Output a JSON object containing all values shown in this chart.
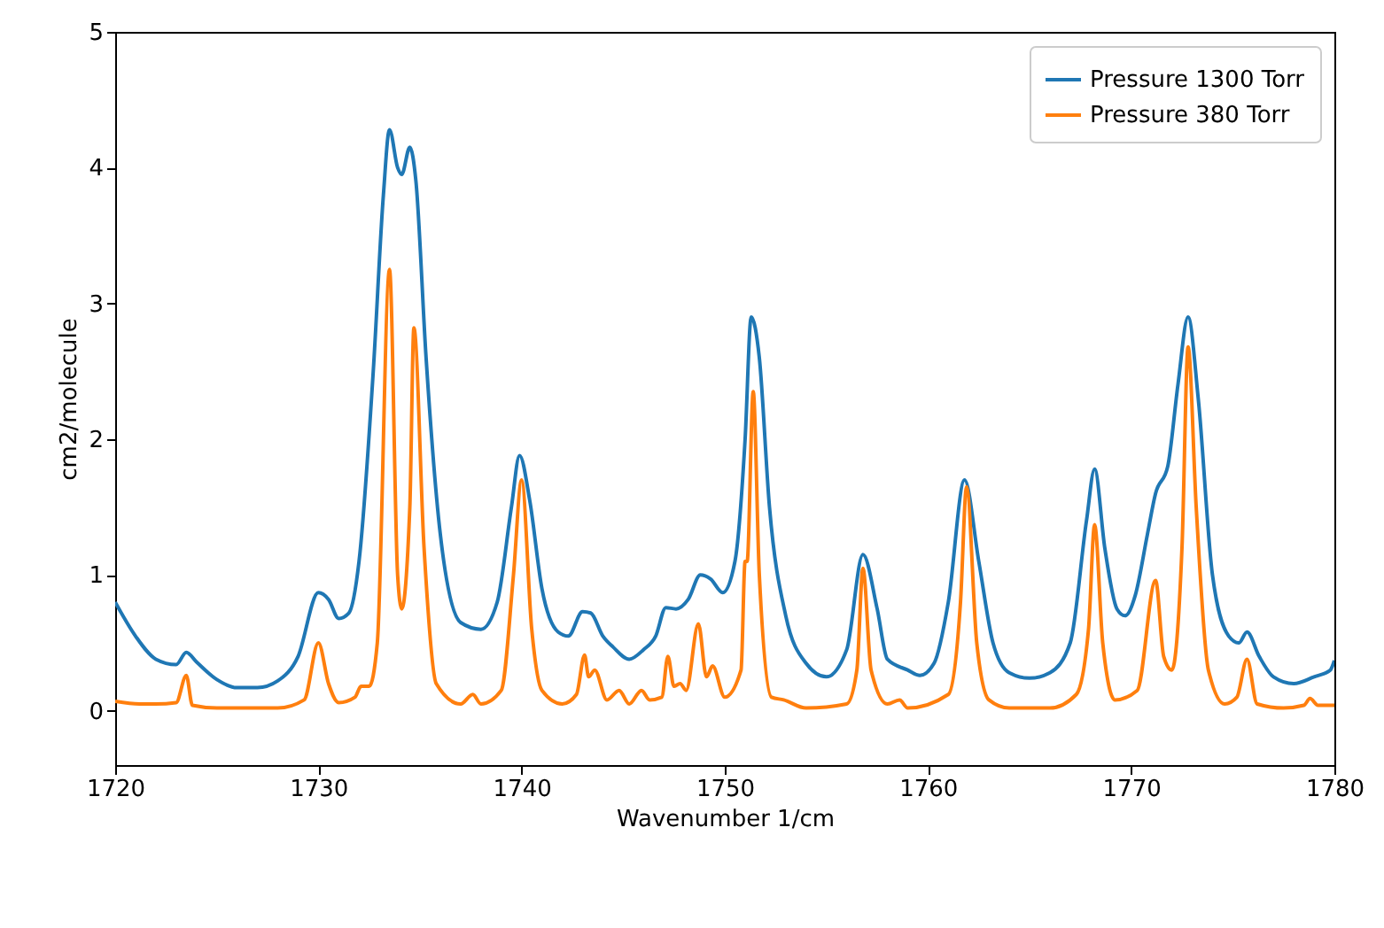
{
  "chart_data": {
    "type": "line",
    "xlabel": "Wavenumber 1/cm",
    "ylabel": "cm2/molecule",
    "xlim": [
      1720,
      1780
    ],
    "xticks": [
      1720,
      1730,
      1740,
      1750,
      1760,
      1770,
      1780
    ],
    "ylim": [
      -0.4,
      5
    ],
    "yticks": [
      0,
      1,
      2,
      3,
      4,
      5
    ],
    "grid": false,
    "legend": "top right",
    "marker": "none",
    "line_style": "solid",
    "series": [
      {
        "name": "Pressure 1300 Torr",
        "color": "#1f77b4",
        "x": [
          1720,
          1721,
          1722,
          1723,
          1723.5,
          1724,
          1725,
          1726,
          1727,
          1728,
          1729,
          1730,
          1730.5,
          1731,
          1731.5,
          1732,
          1732.7,
          1733.2,
          1733.5,
          1733.9,
          1734.1,
          1734.5,
          1734.8,
          1735.3,
          1736,
          1737,
          1738,
          1738.8,
          1739.5,
          1739.9,
          1740.4,
          1741,
          1741.8,
          1742.3,
          1743,
          1743.4,
          1744,
          1744.5,
          1745.3,
          1746,
          1746.6,
          1747.1,
          1747.6,
          1748.2,
          1748.8,
          1749.3,
          1749.9,
          1750.5,
          1751,
          1751.3,
          1751.7,
          1752.2,
          1753,
          1754,
          1755,
          1756,
          1756.8,
          1757.5,
          1758,
          1759,
          1759.6,
          1760.3,
          1761,
          1761.8,
          1762.5,
          1763.2,
          1764,
          1765,
          1766,
          1767,
          1767.8,
          1768.2,
          1768.7,
          1769.3,
          1769.7,
          1770.2,
          1770.8,
          1771.2,
          1771.8,
          1772.3,
          1772.8,
          1773.3,
          1774,
          1774.8,
          1775.3,
          1775.7,
          1776.3,
          1777,
          1778,
          1779,
          1779.8,
          1780
        ],
        "values": [
          0.8,
          0.55,
          0.38,
          0.34,
          0.43,
          0.36,
          0.23,
          0.17,
          0.17,
          0.22,
          0.4,
          0.87,
          0.82,
          0.68,
          0.72,
          1.1,
          2.5,
          3.8,
          4.28,
          4.0,
          3.95,
          4.15,
          3.9,
          2.6,
          1.3,
          0.65,
          0.6,
          0.8,
          1.5,
          1.88,
          1.55,
          0.9,
          0.58,
          0.55,
          0.73,
          0.72,
          0.55,
          0.47,
          0.38,
          0.45,
          0.55,
          0.76,
          0.75,
          0.82,
          1.0,
          0.97,
          0.87,
          1.1,
          2.0,
          2.9,
          2.6,
          1.5,
          0.7,
          0.35,
          0.25,
          0.45,
          1.15,
          0.75,
          0.38,
          0.3,
          0.26,
          0.35,
          0.8,
          1.7,
          1.1,
          0.5,
          0.28,
          0.24,
          0.28,
          0.5,
          1.4,
          1.78,
          1.2,
          0.75,
          0.7,
          0.85,
          1.3,
          1.6,
          1.8,
          2.4,
          2.9,
          2.3,
          1.0,
          0.55,
          0.5,
          0.58,
          0.4,
          0.25,
          0.2,
          0.25,
          0.3,
          0.37
        ]
      },
      {
        "name": "Pressure 380 Torr",
        "color": "#ff7f0e",
        "x": [
          1720,
          1721.2,
          1722,
          1723,
          1723.5,
          1723.8,
          1725,
          1728,
          1729.3,
          1730,
          1730.5,
          1731,
          1731.8,
          1732.1,
          1732.5,
          1732.9,
          1733.5,
          1733.9,
          1734.1,
          1734.5,
          1734.7,
          1735.2,
          1735.8,
          1737,
          1737.6,
          1738,
          1739,
          1739.6,
          1740,
          1740.5,
          1741,
          1742,
          1742.7,
          1743.1,
          1743.3,
          1743.6,
          1744.2,
          1744.8,
          1745.3,
          1745.9,
          1746.3,
          1746.9,
          1747.2,
          1747.5,
          1747.8,
          1748.1,
          1748.7,
          1749.1,
          1749.4,
          1750,
          1750.8,
          1751.0,
          1751.1,
          1751.4,
          1751.7,
          1752.3,
          1752.9,
          1754,
          1756,
          1756.5,
          1756.8,
          1757.2,
          1758,
          1758.6,
          1759,
          1761,
          1761.6,
          1761.9,
          1762.4,
          1763,
          1764,
          1766,
          1767.3,
          1767.9,
          1768.2,
          1768.6,
          1769.2,
          1770.3,
          1771.2,
          1771.6,
          1772,
          1772.5,
          1772.8,
          1773.2,
          1773.8,
          1774.6,
          1775.2,
          1775.7,
          1776.2,
          1777.5,
          1778.5,
          1778.8,
          1779.2,
          1780
        ],
        "values": [
          0.07,
          0.05,
          0.05,
          0.06,
          0.26,
          0.04,
          0.02,
          0.02,
          0.08,
          0.5,
          0.2,
          0.06,
          0.1,
          0.18,
          0.18,
          0.5,
          3.25,
          1.0,
          0.75,
          1.5,
          2.82,
          1.2,
          0.2,
          0.05,
          0.12,
          0.05,
          0.15,
          1.0,
          1.7,
          0.6,
          0.15,
          0.05,
          0.12,
          0.41,
          0.25,
          0.3,
          0.08,
          0.15,
          0.05,
          0.15,
          0.08,
          0.1,
          0.4,
          0.18,
          0.2,
          0.15,
          0.64,
          0.25,
          0.33,
          0.1,
          0.3,
          1.1,
          1.1,
          2.35,
          1.0,
          0.1,
          0.08,
          0.02,
          0.05,
          0.3,
          1.05,
          0.3,
          0.05,
          0.08,
          0.02,
          0.12,
          0.8,
          1.65,
          0.5,
          0.08,
          0.02,
          0.02,
          0.12,
          0.6,
          1.37,
          0.5,
          0.08,
          0.15,
          0.96,
          0.4,
          0.3,
          1.2,
          2.68,
          1.5,
          0.3,
          0.05,
          0.1,
          0.38,
          0.05,
          0.02,
          0.04,
          0.09,
          0.04,
          0.04
        ]
      }
    ]
  }
}
